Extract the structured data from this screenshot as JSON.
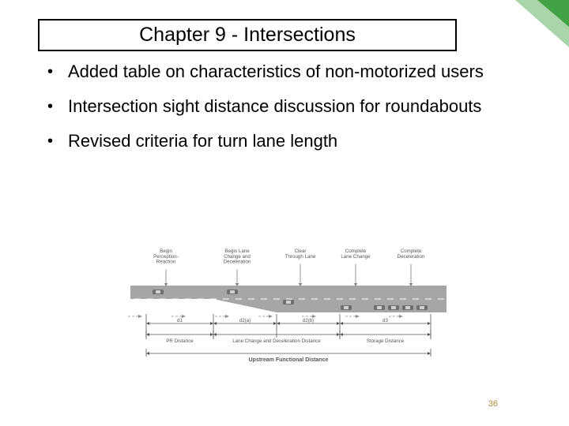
{
  "accent_color": "#42a245",
  "page_number_color": "#b08a3a",
  "title": "Chapter 9 - Intersections",
  "bullets": [
    "Added table on characteristics of non-motorized users",
    "Intersection sight distance discussion for roundabouts",
    "Revised criteria for turn lane length"
  ],
  "page_number": "36",
  "diagram": {
    "type": "infographic",
    "labels": {
      "top": [
        "Begin\nPerception-\nReaction",
        "Begin Lane\nChange and\nDeceleration",
        "Clear\nThrough Lane",
        "Complete\nLane Change",
        "Complete\nDeceleration"
      ],
      "segments": [
        {
          "key": "d1",
          "label": "PR Distance"
        },
        {
          "key": "d2(a)",
          "label": ""
        },
        {
          "key": "d2(b)",
          "label": ""
        },
        {
          "key": "d3",
          "label": "Storage Distance"
        }
      ],
      "mid_segment_label": "Lane Change and Deceleration Distance",
      "overall_label": "Upstream Functional Distance"
    },
    "colors": {
      "road": "#a6a6a6",
      "road_dark": "#7a7a7a",
      "car": "#6e6e6e",
      "arrow": "#8a8a8a",
      "dim": "#555555",
      "label_text": "#555555"
    },
    "font": {
      "label_size": 6.2,
      "segment_size": 7
    }
  }
}
